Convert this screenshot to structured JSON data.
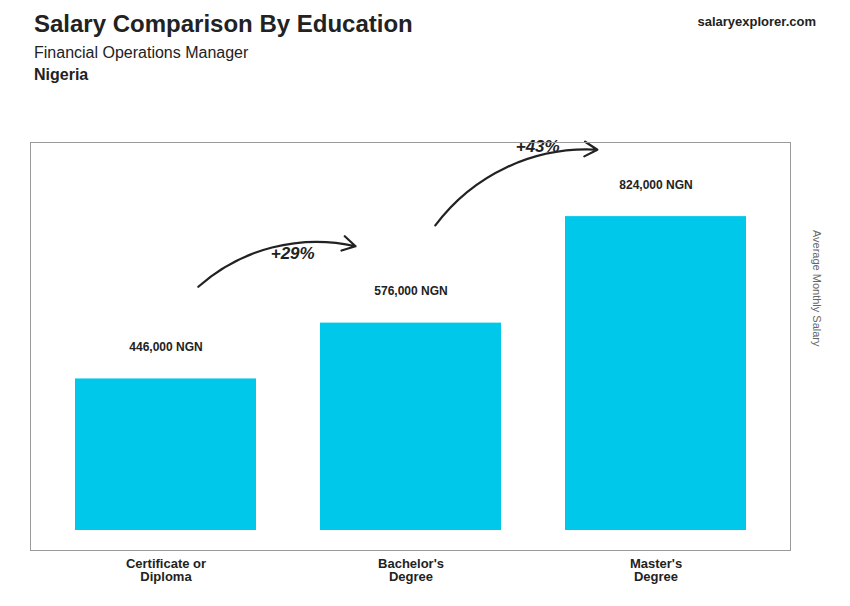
{
  "chart_data": {
    "type": "bar",
    "title": "Salary Comparison By Education",
    "subtitle": "Financial Operations Manager",
    "country": "Nigeria",
    "source": "salaryexplorer.com",
    "categories": [
      "Certificate or\nDiploma",
      "Bachelor's\nDegree",
      "Master's\nDegree"
    ],
    "values": [
      446000,
      576000,
      824000
    ],
    "value_labels": [
      "446,000 NGN",
      "576,000 NGN",
      "824,000 NGN"
    ],
    "data_labels": true,
    "annotations": [
      "+29%",
      "+43%"
    ],
    "ylabel": "Average Monthly Salary",
    "color": "#00c8ea",
    "ylim": [
      0,
      950000
    ],
    "yticks": [],
    "tick_labels": "x"
  }
}
